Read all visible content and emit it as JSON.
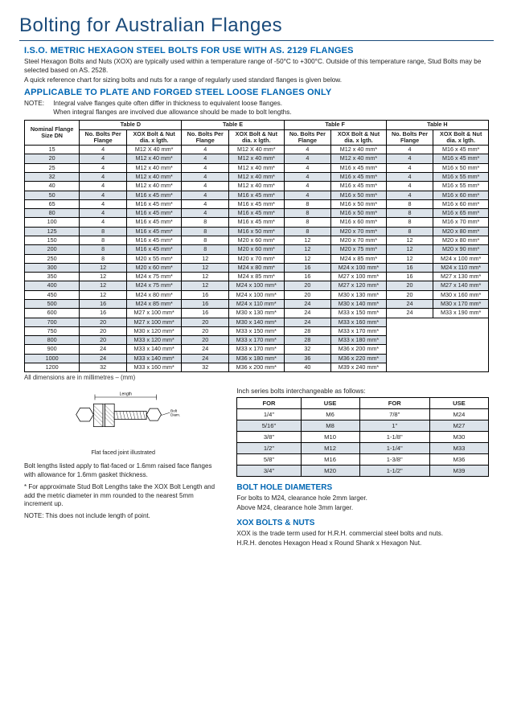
{
  "title": "Bolting for Australian Flanges",
  "h2a": "I.S.O. METRIC HEXAGON STEEL BOLTS FOR USE WITH AS. 2129 FLANGES",
  "p1": "Steel Hexagon Bolts and Nuts (XOX) are typically used within a temperature range of -50°C to +300°C. Outside of this temperature range, Stud Bolts may be selected based on AS. 2528.",
  "p2": "A quick reference chart for sizing bolts and nuts for a range of regularly used standard flanges is given below.",
  "h2b": "APPLICABLE TO PLATE AND FORGED STEEL LOOSE FLANGES ONLY",
  "note_lbl": "NOTE:",
  "note_body": "Integral valve flanges quite often differ in thickness to equivalent loose flanges.\nWhen integral flanges are involved due allowance should be made to bolt lengths.",
  "main_table": {
    "head_top": [
      "Nominal Flange Size DN",
      "Table D",
      "Table E",
      "Table F",
      "Table H"
    ],
    "head_sub": [
      "No. Bolts Per Flange",
      "XOX Bolt & Nut dia. x lgth.",
      "No. Bolts Per Flange",
      "XOX Bolt & Nut dia. x lgth.",
      "No. Bolts Per Flange",
      "XOX Bolt & Nut dia. x lgth.",
      "No. Bolts Per Flange",
      "XOX Bolt & Nut dia. x lgth."
    ],
    "rows": [
      [
        "15",
        "4",
        "M12 X 40 mm*",
        "4",
        "M12 X 40 mm*",
        "4",
        "M12 x 40 mm*",
        "4",
        "M16 x 45 mm*"
      ],
      [
        "20",
        "4",
        "M12 x 40 mm*",
        "4",
        "M12 x 40 mm*",
        "4",
        "M12 x 40 mm*",
        "4",
        "M16 x 45 mm*"
      ],
      [
        "25",
        "4",
        "M12 x 40 mm*",
        "4",
        "M12 x 40 mm*",
        "4",
        "M16 x 45 mm*",
        "4",
        "M16 x 50 mm*"
      ],
      [
        "32",
        "4",
        "M12 x 40 mm*",
        "4",
        "M12 x 40 mm*",
        "4",
        "M16 x 45 mm*",
        "4",
        "M16 x 55 mm*"
      ],
      [
        "40",
        "4",
        "M12 x 40 mm*",
        "4",
        "M12 x 40 mm*",
        "4",
        "M16 x 45 mm*",
        "4",
        "M16 x 55 mm*"
      ],
      [
        "50",
        "4",
        "M16 x 45 mm*",
        "4",
        "M16 x 45 mm*",
        "4",
        "M16 x 50 mm*",
        "4",
        "M16 x 60 mm*"
      ],
      [
        "65",
        "4",
        "M16 x 45 mm*",
        "4",
        "M16 x 45 mm*",
        "8",
        "M16 x 50 mm*",
        "8",
        "M16 x 60 mm*"
      ],
      [
        "80",
        "4",
        "M16 x 45 mm*",
        "4",
        "M16 x 45 mm*",
        "8",
        "M16 x 50 mm*",
        "8",
        "M16 x 65 mm*"
      ],
      [
        "100",
        "4",
        "M16 x 45 mm*",
        "8",
        "M16 x 45 mm*",
        "8",
        "M16 x 60 mm*",
        "8",
        "M16 x 70 mm*"
      ],
      [
        "125",
        "8",
        "M16 x 45 mm*",
        "8",
        "M16 x 50 mm*",
        "8",
        "M20 x 70 mm*",
        "8",
        "M20 x 80 mm*"
      ],
      [
        "150",
        "8",
        "M16 x 45 mm*",
        "8",
        "M20 x 60 mm*",
        "12",
        "M20 x 70 mm*",
        "12",
        "M20 x 80 mm*"
      ],
      [
        "200",
        "8",
        "M16 x 45 mm*",
        "8",
        "M20 x 60 mm*",
        "12",
        "M20 x 75 mm*",
        "12",
        "M20 x 90 mm*"
      ],
      [
        "250",
        "8",
        "M20 x 55 mm*",
        "12",
        "M20 x 70 mm*",
        "12",
        "M24 x 85 mm*",
        "12",
        "M24 x 100 mm*"
      ],
      [
        "300",
        "12",
        "M20 x 60 mm*",
        "12",
        "M24 x 80 mm*",
        "16",
        "M24 x 100 mm*",
        "16",
        "M24 x 110 mm*"
      ],
      [
        "350",
        "12",
        "M24 x 75 mm*",
        "12",
        "M24 x 85 mm*",
        "16",
        "M27 x 100 mm*",
        "16",
        "M27 x 130 mm*"
      ],
      [
        "400",
        "12",
        "M24 x 75 mm*",
        "12",
        "M24 x 100 mm*",
        "20",
        "M27 x 120 mm*",
        "20",
        "M27 x 140 mm*"
      ],
      [
        "450",
        "12",
        "M24 x 80 mm*",
        "16",
        "M24 x 100 mm*",
        "20",
        "M30 x 130 mm*",
        "20",
        "M30 x 160 mm*"
      ],
      [
        "500",
        "16",
        "M24 x 85 mm*",
        "16",
        "M24 x 110 mm*",
        "24",
        "M30 x 140 mm*",
        "24",
        "M30 x 170 mm*"
      ],
      [
        "600",
        "16",
        "M27 x 100 mm*",
        "16",
        "M30 x 130 mm*",
        "24",
        "M33 x 150 mm*",
        "24",
        "M33 x 190 mm*"
      ],
      [
        "700",
        "20",
        "M27 x 100 mm*",
        "20",
        "M30 x 140 mm*",
        "24",
        "M33 x 160 mm*",
        "",
        ""
      ],
      [
        "750",
        "20",
        "M30 x 120 mm*",
        "20",
        "M33 x 150 mm*",
        "28",
        "M33 x 170 mm*",
        "",
        ""
      ],
      [
        "800",
        "20",
        "M33 x 120 mm*",
        "20",
        "M33 x 170 mm*",
        "28",
        "M33 x 180 mm*",
        "",
        ""
      ],
      [
        "900",
        "24",
        "M33 x 140 mm*",
        "24",
        "M33 x 170 mm*",
        "32",
        "M36 x 200 mm*",
        "",
        ""
      ],
      [
        "1000",
        "24",
        "M33 x 140 mm*",
        "24",
        "M36 x 180 mm*",
        "36",
        "M36 x 220 mm*",
        "",
        ""
      ],
      [
        "1200",
        "32",
        "M33 x 160 mm*",
        "32",
        "M36 x 200 mm*",
        "40",
        "M39 x 240 mm*",
        "",
        ""
      ]
    ]
  },
  "foot": "All dimensions are in millimetres – (mm)",
  "fig": {
    "label_len": "Length",
    "label_dia": "Bolt Diam.",
    "caption": "Flat faced joint illustrated"
  },
  "left_notes": {
    "p1": "Bolt lengths listed apply to flat-faced or 1.6mm raised face flanges with allowance for 1.6mm gasket thickness.",
    "p2": "* For approximate Stud Bolt Lengths take the XOX Bolt Length and add the metric diameter in mm rounded to the nearest 5mm increment up.",
    "p3": "NOTE: This does not include length of point."
  },
  "inch": {
    "intro": "Inch series bolts interchangeable as follows:",
    "head": [
      "FOR",
      "USE",
      "FOR",
      "USE"
    ],
    "rows": [
      [
        "1/4\"",
        "M6",
        "7/8\"",
        "M24"
      ],
      [
        "5/16\"",
        "M8",
        "1\"",
        "M27"
      ],
      [
        "3/8\"",
        "M10",
        "1-1/8\"",
        "M30"
      ],
      [
        "1/2\"",
        "M12",
        "1-1/4\"",
        "M33"
      ],
      [
        "5/8\"",
        "M16",
        "1-3/8\"",
        "M36"
      ],
      [
        "3/4\"",
        "M20",
        "1-1/2\"",
        "M39"
      ]
    ]
  },
  "bhd": {
    "title": "BOLT HOLE DIAMETERS",
    "p1": "For bolts to M24, clearance hole 2mm larger.",
    "p2": "Above M24, clearance hole 3mm larger."
  },
  "xox": {
    "title": "XOX BOLTS & NUTS",
    "p1": "XOX is the trade term used for H.R.H. commercial steel bolts and nuts.",
    "p2": "H.R.H. denotes Hexagon Head x Round Shank x Hexagon Nut."
  }
}
